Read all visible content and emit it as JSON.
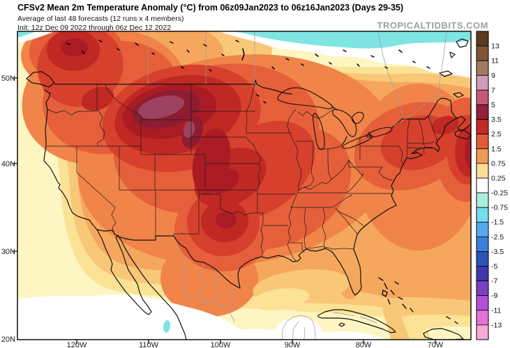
{
  "header": {
    "title": "CFSv2 Mean 2m Temperature Anomaly (°C) from 06z09Jan2023 to 06z16Jan2023 (Days 29-35)",
    "subtitle": "Average of last 48 forecasts (12 runs x 4 members)",
    "init_line": "Init: 12z Dec 09 2022 through 06z Dec 12 2022",
    "watermark": "TROPICALTIDBITS.COM"
  },
  "map": {
    "lat_labels": [
      "50N",
      "40N",
      "30N",
      "20N"
    ],
    "lon_labels": [
      "120W",
      "110W",
      "100W",
      "90W",
      "80W",
      "70W"
    ],
    "palette": {
      "L0": "#ffffff",
      "L1": "#fdf5c2",
      "L2": "#fbe294",
      "L3": "#f9c778",
      "L4": "#f6a75e",
      "L5": "#f08449",
      "L6": "#e55f3a",
      "L7": "#d6402d",
      "L8": "#c02823",
      "L9": "#ab1b24",
      "L10": "#8e1c31",
      "L11": "#9c4260",
      "CY": "#7fe5e2"
    }
  },
  "colorbar": {
    "labels": [
      "13",
      "11",
      "9",
      "7",
      "5",
      "3.5",
      "2.5",
      "1.5",
      "0.75",
      "0.25",
      "-0.25",
      "-0.75",
      "-1.5",
      "-2.5",
      "-3.5",
      "-5",
      "-7",
      "-9",
      "-11",
      "-13"
    ],
    "cells": [
      "#5a3a21",
      "#7d5637",
      "#a17a5e",
      "#cf9cba",
      "#c35a78",
      "#93203a",
      "#c32a26",
      "#e25b38",
      "#f29a58",
      "#fbdd96",
      "#ffffff",
      "#abefdd",
      "#74dcea",
      "#55aaec",
      "#3b7fd8",
      "#2a54b8",
      "#4237ac",
      "#7a3fc4",
      "#b44fd8",
      "#e273d8",
      "#f5abd6"
    ]
  },
  "chart_data": {
    "type": "heatmap",
    "subtype": "filled-contour geographic map (equirectangular, CONUS)",
    "title": "CFSv2 Mean 2m Temperature Anomaly (°C) from 06z09Jan2023 to 06z16Jan2023 (Days 29-35)",
    "subtitle": "Average of last 48 forecasts (12 runs x 4 members)",
    "init": "Init: 12z Dec 09 2022 through 06z Dec 12 2022",
    "source_watermark": "TROPICALTIDBITS.COM",
    "units": "°C anomaly",
    "extent": {
      "lon_west": 128,
      "lon_east": 65,
      "lat_south": 20,
      "lat_north": 55
    },
    "xticks": [
      "120W",
      "110W",
      "100W",
      "90W",
      "80W",
      "70W"
    ],
    "yticks": [
      "50N",
      "40N",
      "30N",
      "20N"
    ],
    "colorbar_levels": [
      13,
      11,
      9,
      7,
      5,
      3.5,
      2.5,
      1.5,
      0.75,
      0.25,
      -0.25,
      -0.75,
      -1.5,
      -2.5,
      -3.5,
      -5,
      -7,
      -9,
      -11,
      -13
    ],
    "legend_position": "right vertical colorbar",
    "grid": false,
    "features": [
      {
        "region": "Eastern Montana / western Dakotas (peak warm core)",
        "anomaly_c": "+5 to +7"
      },
      {
        "region": "Montana-Wyoming-Dakotas ring around core",
        "anomaly_c": "+3.5 to +5"
      },
      {
        "region": "Northern Plains through Nebraska/Kansas/Oklahoma, north Texas core, southern British Columbia",
        "anomaly_c": "+3.5 to +5"
      },
      {
        "region": "Most of interior CONUS (Rockies through Midwest, Texas, Ohio Valley), New England / Maritimes, western Atlantic near right edge",
        "anomaly_c": "+2.5 to +3.5"
      },
      {
        "region": "West Coast states inland, Southeast, Great Lakes",
        "anomaly_c": "+1.5 to +2.5"
      },
      {
        "region": "California coast, Gulf Coast waters, Florida, NW Mexico",
        "anomaly_c": "+0.75 to +1.5"
      },
      {
        "region": "Eastern Pacific off Baja, Gulf of Mexico center, SE Atlantic corner",
        "anomaly_c": "0 to +0.75"
      },
      {
        "region": "Far northern band across Canada (top of map) and Yucatan",
        "anomaly_c": "-0.75 to +0.25 (near/below normal, cyan band)"
      }
    ]
  }
}
